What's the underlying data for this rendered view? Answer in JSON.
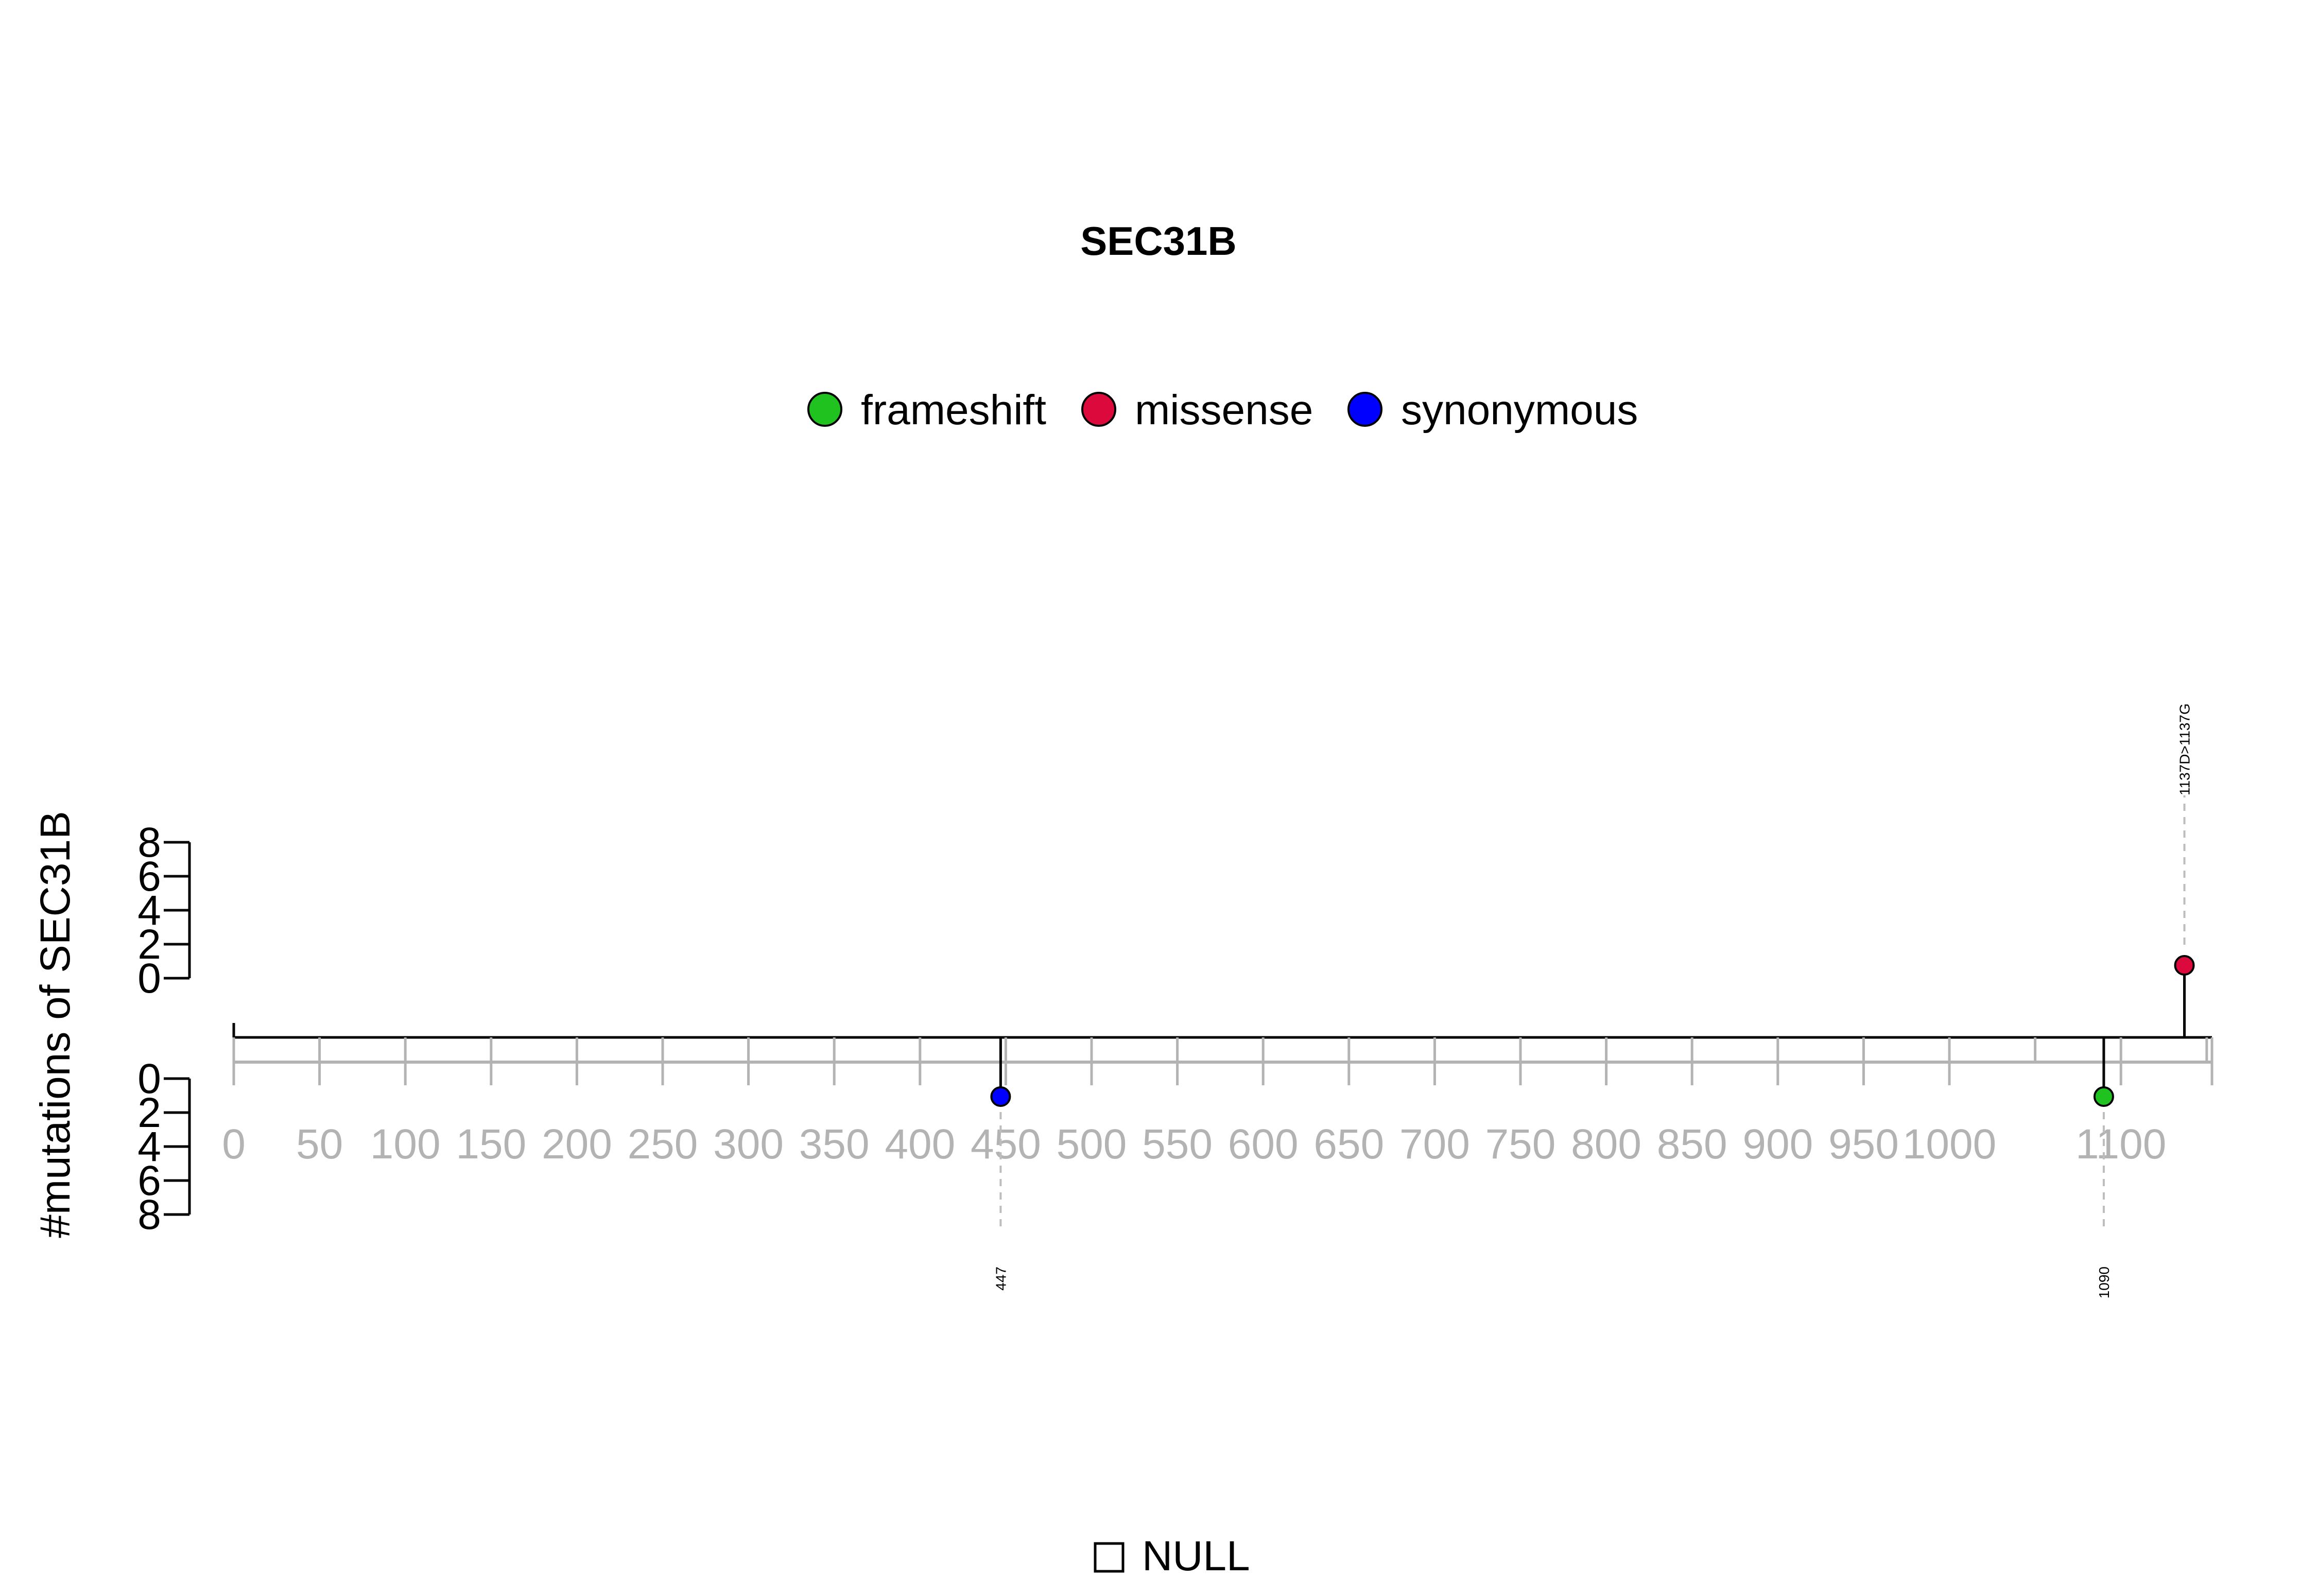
{
  "title": "SEC31B",
  "legend": {
    "position": "top-center",
    "items": [
      {
        "label": "frameshift",
        "color": "#1FC21F"
      },
      {
        "label": "missense",
        "color": "#DC0A3C"
      },
      {
        "label": "synonymous",
        "color": "#0000FF"
      }
    ]
  },
  "bottom_legend": {
    "label": "NULL",
    "icon": "open-square-icon"
  },
  "chart_data": {
    "type": "lollipop",
    "title": "SEC31B",
    "ylabel": "#mutations of SEC31B",
    "xlim": [
      0,
      1160
    ],
    "x_ticks": [
      0,
      50,
      100,
      150,
      200,
      250,
      300,
      350,
      400,
      450,
      500,
      550,
      600,
      650,
      700,
      750,
      800,
      850,
      900,
      950,
      1000,
      1100
    ],
    "x_tick_labels": [
      "0",
      "50",
      "100",
      "150",
      "200",
      "250",
      "300",
      "350",
      "400",
      "450",
      "500",
      "550",
      "600",
      "650",
      "700",
      "750",
      "800",
      "850",
      "900",
      "950",
      "1000",
      "1100"
    ],
    "y_ticks_top": [
      0,
      2,
      4,
      6,
      8
    ],
    "y_ticks_bottom": [
      0,
      2,
      4,
      6,
      8
    ],
    "ylim": [
      0,
      8
    ],
    "mutations": [
      {
        "position": 447,
        "count": 1,
        "type": "synonymous",
        "side": "bottom",
        "label": "447",
        "color": "#0000FF"
      },
      {
        "position": 1090,
        "count": 1,
        "type": "frameshift",
        "side": "bottom",
        "label": "1090",
        "color": "#1FC21F"
      },
      {
        "position": 1137,
        "count": 1,
        "type": "missense",
        "side": "top",
        "label": "1137D>1137G",
        "color": "#DC0A3C"
      }
    ]
  }
}
